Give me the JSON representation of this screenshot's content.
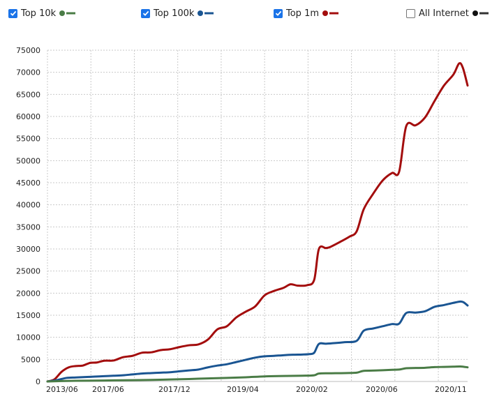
{
  "legend": [
    {
      "label": "Top 10k",
      "checked": true,
      "color": "#4a7c46"
    },
    {
      "label": "Top 100k",
      "checked": true,
      "color": "#1a5592"
    },
    {
      "label": "Top 1m",
      "checked": true,
      "color": "#a30d0d"
    },
    {
      "label": "All Internet",
      "checked": false,
      "color": "#333333"
    }
  ],
  "chart_data": {
    "type": "line",
    "title": "",
    "xlabel": "",
    "ylabel": "",
    "ylim": [
      0,
      75000
    ],
    "grid": true,
    "legend_position": "top",
    "y_ticks": [
      "0",
      "5000",
      "10000",
      "15000",
      "20000",
      "25000",
      "30000",
      "35000",
      "40000",
      "45000",
      "50000",
      "55000",
      "60000",
      "65000",
      "70000",
      "75000"
    ],
    "x_ticks": [
      "2013/06",
      "2017/06",
      "2017/12",
      "2019/04",
      "2020/02",
      "2020/06",
      "2020/11"
    ],
    "series": [
      {
        "name": "Top 1m",
        "color": "#a30d0d",
        "points": [
          [
            0,
            0
          ],
          [
            1.5,
            500
          ],
          [
            3,
            2200
          ],
          [
            4.5,
            3200
          ],
          [
            6,
            3500
          ],
          [
            7.5,
            3600
          ],
          [
            9,
            4200
          ],
          [
            10.5,
            4300
          ],
          [
            12,
            4700
          ],
          [
            14,
            4750
          ],
          [
            16,
            5500
          ],
          [
            18,
            5800
          ],
          [
            20,
            6500
          ],
          [
            22,
            6600
          ],
          [
            24,
            7100
          ],
          [
            26,
            7300
          ],
          [
            28,
            7800
          ],
          [
            30,
            8200
          ],
          [
            32,
            8400
          ],
          [
            34,
            9500
          ],
          [
            36,
            11800
          ],
          [
            38,
            12500
          ],
          [
            40,
            14500
          ],
          [
            42,
            15800
          ],
          [
            44,
            17000
          ],
          [
            46,
            19500
          ],
          [
            48,
            20500
          ],
          [
            50,
            21200
          ],
          [
            51.5,
            22000
          ],
          [
            53,
            21700
          ],
          [
            55,
            21800
          ],
          [
            56.5,
            23000
          ],
          [
            57.5,
            30000
          ],
          [
            59,
            30200
          ],
          [
            60,
            30500
          ],
          [
            62,
            31600
          ],
          [
            64,
            32800
          ],
          [
            65.5,
            34000
          ],
          [
            67,
            39000
          ],
          [
            69,
            42500
          ],
          [
            71,
            45500
          ],
          [
            73,
            47200
          ],
          [
            74.5,
            47500
          ],
          [
            76,
            57800
          ],
          [
            78,
            58000
          ],
          [
            80,
            59800
          ],
          [
            82,
            63500
          ],
          [
            84,
            67000
          ],
          [
            86,
            69500
          ],
          [
            87.2,
            72000
          ],
          [
            88,
            71000
          ],
          [
            89,
            67000
          ]
        ]
      },
      {
        "name": "Top 100k",
        "color": "#1a5592",
        "points": [
          [
            0,
            0
          ],
          [
            2,
            300
          ],
          [
            4,
            800
          ],
          [
            6,
            900
          ],
          [
            8,
            1000
          ],
          [
            10,
            1100
          ],
          [
            12,
            1200
          ],
          [
            14,
            1300
          ],
          [
            16,
            1400
          ],
          [
            18,
            1600
          ],
          [
            20,
            1800
          ],
          [
            22,
            1900
          ],
          [
            24,
            2000
          ],
          [
            26,
            2100
          ],
          [
            28,
            2300
          ],
          [
            30,
            2500
          ],
          [
            32,
            2700
          ],
          [
            34,
            3200
          ],
          [
            36,
            3600
          ],
          [
            38,
            3900
          ],
          [
            40,
            4400
          ],
          [
            42,
            4900
          ],
          [
            44,
            5400
          ],
          [
            46,
            5700
          ],
          [
            48,
            5800
          ],
          [
            50,
            5950
          ],
          [
            52,
            6050
          ],
          [
            54,
            6100
          ],
          [
            55.5,
            6200
          ],
          [
            56.5,
            6500
          ],
          [
            57.5,
            8500
          ],
          [
            59,
            8550
          ],
          [
            61,
            8700
          ],
          [
            63,
            8900
          ],
          [
            65.5,
            9200
          ],
          [
            67,
            11500
          ],
          [
            69,
            12000
          ],
          [
            71,
            12500
          ],
          [
            73,
            13000
          ],
          [
            74.5,
            13100
          ],
          [
            76,
            15500
          ],
          [
            78,
            15600
          ],
          [
            80,
            15900
          ],
          [
            82,
            16900
          ],
          [
            84,
            17300
          ],
          [
            86,
            17800
          ],
          [
            87.5,
            18100
          ],
          [
            88.2,
            17900
          ],
          [
            89,
            17200
          ]
        ]
      },
      {
        "name": "Top 10k",
        "color": "#4a7c46",
        "points": [
          [
            0,
            0
          ],
          [
            3,
            100
          ],
          [
            6,
            150
          ],
          [
            10,
            200
          ],
          [
            14,
            250
          ],
          [
            18,
            300
          ],
          [
            22,
            350
          ],
          [
            26,
            450
          ],
          [
            30,
            550
          ],
          [
            34,
            700
          ],
          [
            38,
            800
          ],
          [
            42,
            950
          ],
          [
            46,
            1150
          ],
          [
            50,
            1250
          ],
          [
            54,
            1300
          ],
          [
            56.5,
            1400
          ],
          [
            57.5,
            1800
          ],
          [
            60,
            1850
          ],
          [
            63,
            1900
          ],
          [
            65.5,
            2000
          ],
          [
            67,
            2400
          ],
          [
            70,
            2500
          ],
          [
            73,
            2650
          ],
          [
            74.5,
            2700
          ],
          [
            76,
            3000
          ],
          [
            78,
            3050
          ],
          [
            80,
            3100
          ],
          [
            82,
            3250
          ],
          [
            84,
            3300
          ],
          [
            86,
            3350
          ],
          [
            87.5,
            3400
          ],
          [
            89,
            3200
          ]
        ]
      }
    ]
  }
}
